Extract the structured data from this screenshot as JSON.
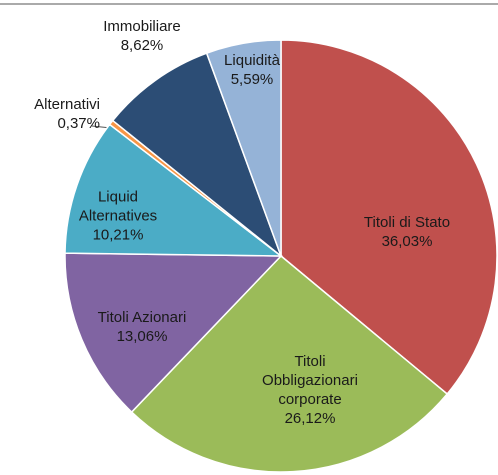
{
  "chart_data": {
    "type": "pie",
    "categories": [
      "Titoli di Stato",
      "Titoli Obbligazionari corporate",
      "Titoli Azionari",
      "Liquid Alternatives",
      "Alternativi",
      "Immobiliare",
      "Liquidità"
    ],
    "values": [
      36.03,
      26.12,
      13.06,
      10.21,
      0.37,
      8.62,
      5.59
    ],
    "value_labels": [
      "36,03%",
      "26,12%",
      "13,06%",
      "10,21%",
      "0,37%",
      "8,62%",
      "5,59%"
    ],
    "colors": [
      "#c0504d",
      "#9bbb59",
      "#8064a2",
      "#4bacc6",
      "#f79646",
      "#2c4d75",
      "#95b3d7"
    ]
  }
}
